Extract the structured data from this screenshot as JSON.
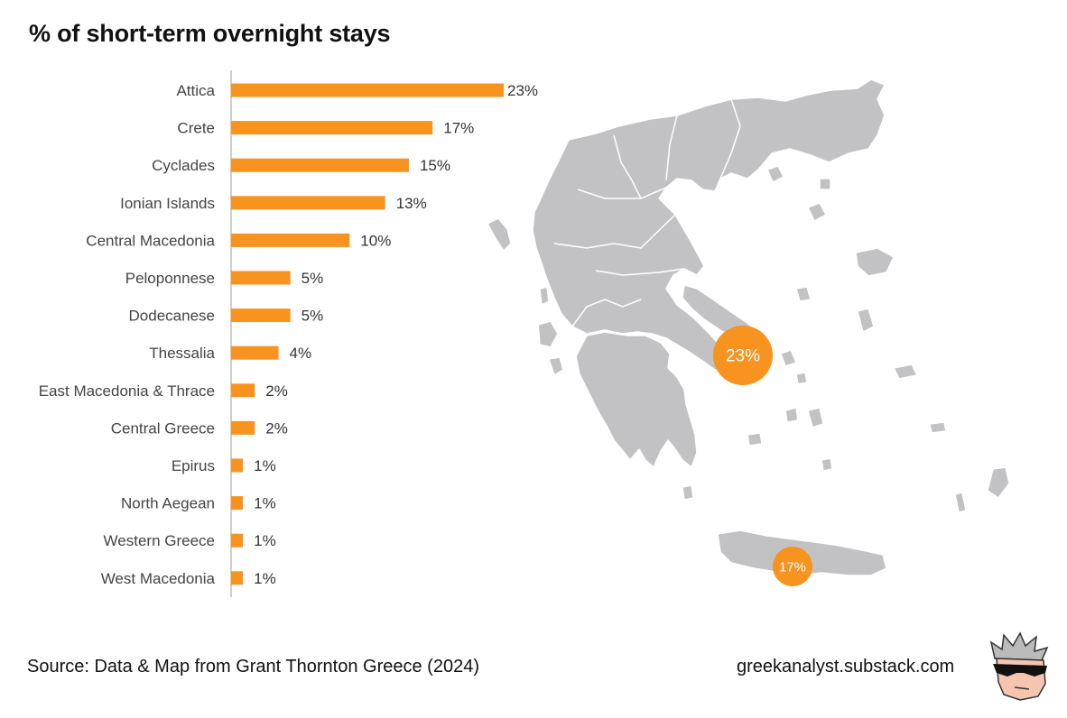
{
  "title": "% of short-term overnight stays",
  "chart_data": {
    "type": "bar",
    "orientation": "horizontal",
    "title": "% of short-term overnight stays",
    "categories": [
      "Attica",
      "Crete",
      "Cyclades",
      "Ionian Islands",
      "Central Macedonia",
      "Peloponnese",
      "Dodecanese",
      "Thessalia",
      "East Macedonia & Thrace",
      "Central Greece",
      "Epirus",
      "North Aegean",
      "Western Greece",
      "West Macedonia"
    ],
    "values": [
      23,
      17,
      15,
      13,
      10,
      5,
      5,
      4,
      2,
      2,
      1,
      1,
      1,
      1
    ],
    "value_labels": [
      "23%",
      "17%",
      "15%",
      "13%",
      "10%",
      "5%",
      "5%",
      "4%",
      "2%",
      "2%",
      "1%",
      "1%",
      "1%",
      "1%"
    ],
    "xlim": [
      0,
      23
    ],
    "grid": false,
    "bar_color": "#f7931e"
  },
  "map": {
    "land_color": "#c2c2c4",
    "border_color": "#ffffff",
    "markers": [
      {
        "region": "Attica",
        "label": "23%"
      },
      {
        "region": "Crete",
        "label": "17%"
      }
    ],
    "marker_color": "#f7931e"
  },
  "footer": {
    "source": "Source: Data & Map from Grant Thornton Greece (2024)",
    "site": "greekanalyst.substack.com"
  }
}
